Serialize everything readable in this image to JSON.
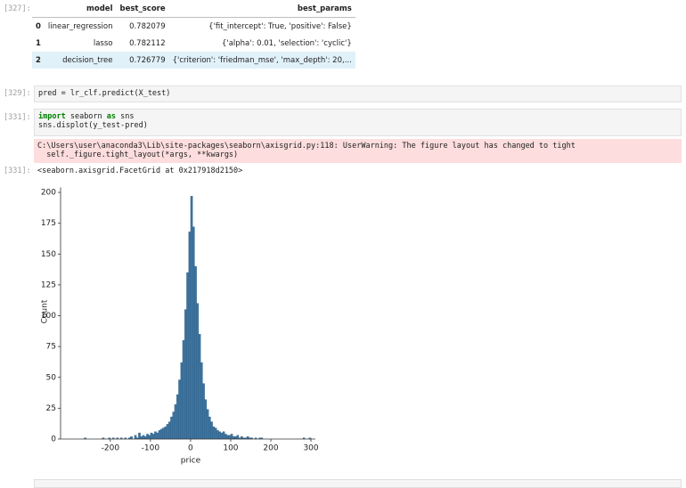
{
  "cells": [
    {
      "prompt": "[327]:",
      "table": {
        "columns": [
          "model",
          "best_score",
          "best_params"
        ],
        "rows": [
          [
            "0",
            "linear_regression",
            "0.782079",
            "{'fit_intercept': True, 'positive': False}"
          ],
          [
            "1",
            "lasso",
            "0.782112",
            "{'alpha': 0.01, 'selection': 'cyclic'}"
          ],
          [
            "2",
            "decision_tree",
            "0.726779",
            "{'criterion': 'friedman_mse', 'max_depth': 20,..."
          ]
        ]
      }
    },
    {
      "prompt": "[329]:",
      "code": [
        "pred = lr_clf.predict(X_test)"
      ]
    },
    {
      "prompt": "[331]:",
      "code": [
        "import seaborn as sns",
        "sns.displot(y_test-pred)"
      ],
      "stderr": [
        "C:\\Users\\user\\anaconda3\\Lib\\site-packages\\seaborn\\axisgrid.py:118: UserWarning: The figure layout has changed to tight",
        "  self._figure.tight_layout(*args, **kwargs)"
      ],
      "output_prompt": "[331]:",
      "output": "<seaborn.axisgrid.FacetGrid at 0x217918d2150>"
    }
  ],
  "chart_data": {
    "type": "histogram",
    "xlabel": "price",
    "ylabel": "Count",
    "color": "#3b75a3",
    "edgecolor": "#2b5577",
    "bins": [
      -265,
      -260,
      -255,
      -250,
      -245,
      -240,
      -235,
      -230,
      -225,
      -220,
      -215,
      -210,
      -205,
      -200,
      -195,
      -190,
      -185,
      -180,
      -175,
      -170,
      -165,
      -160,
      -155,
      -150,
      -145,
      -140,
      -135,
      -130,
      -125,
      -120,
      -115,
      -110,
      -105,
      -100,
      -95,
      -90,
      -85,
      -80,
      -75,
      -70,
      -65,
      -60,
      -55,
      -50,
      -45,
      -40,
      -35,
      -30,
      -25,
      -20,
      -15,
      -10,
      -5,
      0,
      5,
      10,
      15,
      20,
      25,
      30,
      35,
      40,
      45,
      50,
      55,
      60,
      65,
      70,
      75,
      80,
      85,
      90,
      95,
      100,
      105,
      110,
      115,
      120,
      125,
      130,
      135,
      140,
      145,
      150,
      155,
      160,
      165,
      170,
      175,
      180,
      185,
      190,
      195,
      200,
      205,
      210,
      215,
      220,
      225,
      230,
      235,
      240,
      245,
      250,
      255,
      260,
      265,
      270,
      275,
      280,
      285,
      290,
      295,
      300
    ],
    "counts": [
      1,
      0,
      0,
      0,
      0,
      0,
      0,
      0,
      0,
      1,
      0,
      0,
      1,
      0,
      1,
      0,
      1,
      0,
      1,
      0,
      1,
      0,
      1,
      2,
      0,
      3,
      1,
      5,
      2,
      3,
      2,
      4,
      3,
      5,
      4,
      6,
      5,
      7,
      8,
      9,
      10,
      12,
      14,
      18,
      22,
      28,
      36,
      48,
      62,
      80,
      105,
      135,
      168,
      197,
      172,
      140,
      110,
      85,
      62,
      45,
      32,
      24,
      18,
      14,
      10,
      9,
      7,
      6,
      5,
      6,
      4,
      3,
      3,
      4,
      2,
      2,
      3,
      1,
      2,
      1,
      1,
      2,
      1,
      1,
      0,
      1,
      0,
      1,
      1,
      0,
      0,
      0,
      0,
      0,
      0,
      0,
      0,
      0,
      0,
      0,
      0,
      0,
      0,
      0,
      0,
      0,
      0,
      0,
      0,
      1,
      0,
      0,
      1
    ],
    "xlim": [
      -324,
      311
    ],
    "ylim": [
      0,
      204
    ],
    "xticks": [
      -200,
      -100,
      0,
      100,
      200,
      300
    ],
    "yticks": [
      0,
      25,
      50,
      75,
      100,
      125,
      150,
      175,
      200
    ]
  }
}
